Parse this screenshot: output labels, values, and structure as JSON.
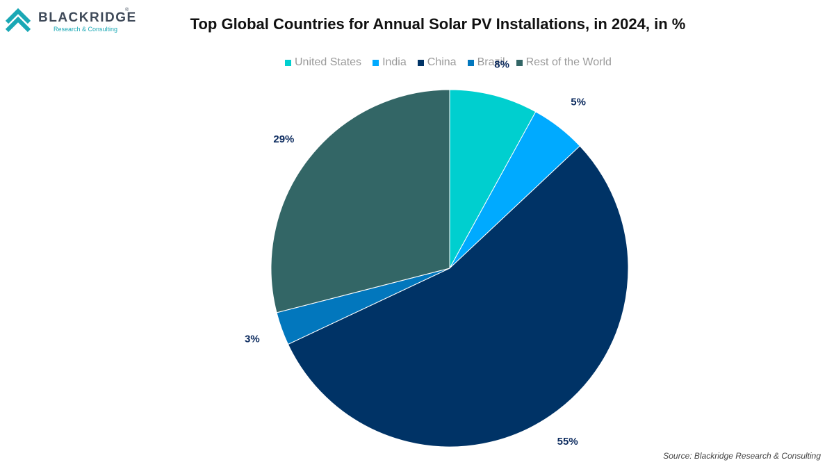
{
  "brand": {
    "name": "BLACKRIDGE",
    "registered": "®",
    "tagline": "Research & Consulting"
  },
  "chart_data": {
    "type": "pie",
    "title": "Top Global Countries for Annual Solar PV Installations, in 2024, in %",
    "legend_position": "top",
    "slices": [
      {
        "name": "United States",
        "value": 8,
        "label": "8%",
        "color": "#00cfcf"
      },
      {
        "name": "India",
        "value": 5,
        "label": "5%",
        "color": "#00aaff"
      },
      {
        "name": "China",
        "value": 55,
        "label": "55%",
        "color": "#003366"
      },
      {
        "name": "Brazil",
        "value": 3,
        "label": "3%",
        "color": "#0277bd"
      },
      {
        "name": "Rest of the World",
        "value": 29,
        "label": "29%",
        "color": "#336666"
      }
    ],
    "source": "Source: Blackridge Research & Consulting"
  }
}
